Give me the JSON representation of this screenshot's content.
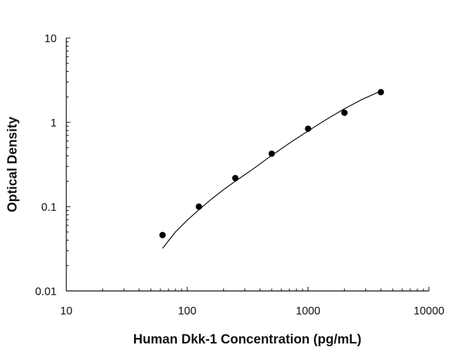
{
  "chart_data": {
    "type": "scatter",
    "title": "",
    "xlabel": "Human Dkk-1 Concentration (pg/mL)",
    "ylabel": "Optical Density",
    "xscale": "log",
    "yscale": "log",
    "xlim": [
      10,
      10000
    ],
    "ylim": [
      0.01,
      10
    ],
    "x_ticks": [
      10,
      100,
      1000,
      10000
    ],
    "x_tick_labels": [
      "10",
      "100",
      "1000",
      "10000"
    ],
    "y_ticks": [
      0.01,
      0.1,
      1,
      10
    ],
    "y_tick_labels": [
      "0.01",
      "0.1",
      "1",
      "10"
    ],
    "grid": false,
    "legend": "none",
    "series": [
      {
        "type": "scatter",
        "x": [
          62.5,
          125,
          250,
          500,
          1000,
          2000,
          4000
        ],
        "y": [
          0.046,
          0.1,
          0.218,
          0.425,
          0.84,
          1.3,
          2.28
        ],
        "color": "#000000"
      },
      {
        "type": "line",
        "x": [
          62.5,
          80,
          100,
          125,
          160,
          200,
          250,
          330,
          500,
          700,
          1000,
          1400,
          2000,
          2800,
          4000
        ],
        "y": [
          0.032,
          0.05,
          0.069,
          0.092,
          0.124,
          0.159,
          0.2,
          0.263,
          0.405,
          0.565,
          0.79,
          1.07,
          1.45,
          1.87,
          2.35
        ],
        "color": "#000000"
      }
    ]
  }
}
